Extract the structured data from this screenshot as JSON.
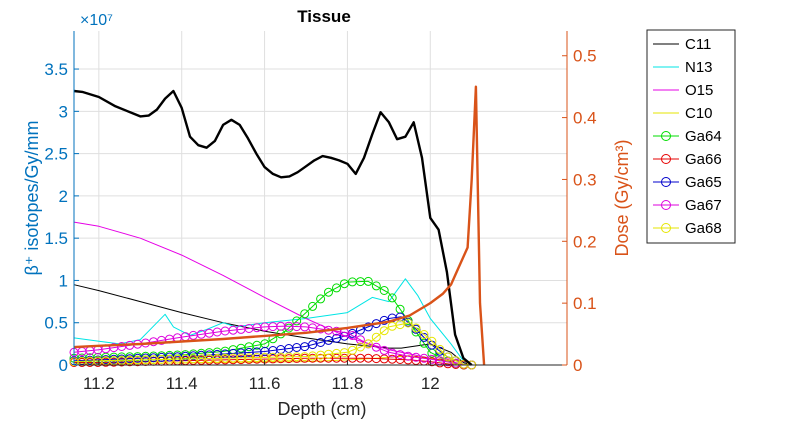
{
  "chart_data": {
    "type": "line",
    "title": "Tissue",
    "xlabel": "Depth (cm)",
    "ylabel_left": "β⁺ isotopes/Gy/mm",
    "ylabel_right": "Dose (Gy/cm³)",
    "left_exponent": "×10⁷",
    "xlim": [
      11.14,
      12.33
    ],
    "ylim_left": [
      0,
      3.95
    ],
    "ylim_right": [
      0,
      0.54
    ],
    "x_ticks": [
      11.2,
      11.4,
      11.6,
      11.8,
      12
    ],
    "x_tick_labels": [
      "11.2",
      "11.4",
      "11.6",
      "11.8",
      "12"
    ],
    "y_left_ticks": [
      0,
      0.5,
      1,
      1.5,
      2,
      2.5,
      3,
      3.5
    ],
    "y_left_tick_labels": [
      "0",
      "0.5",
      "1",
      "1.5",
      "2",
      "2.5",
      "3",
      "3.5"
    ],
    "y_right_ticks": [
      0,
      0.1,
      0.2,
      0.3,
      0.4,
      0.5
    ],
    "y_right_tick_labels": [
      "0",
      "0.1",
      "0.2",
      "0.3",
      "0.4",
      "0.5"
    ],
    "grid": true,
    "legend_position": "outside-top-right",
    "colors": {
      "left_axis": "#0072bd",
      "right_axis": "#d95319",
      "grid": "#dfdfdf"
    },
    "series": [
      {
        "name": "C11",
        "color": "#000000",
        "marker": "none",
        "axis": "left",
        "x": [
          11.14,
          11.2,
          11.3,
          11.4,
          11.5,
          11.6,
          11.7,
          11.8,
          11.9,
          11.93,
          12.0,
          12.05,
          12.08,
          12.1
        ],
        "y": [
          0.95,
          0.88,
          0.75,
          0.62,
          0.5,
          0.4,
          0.32,
          0.25,
          0.2,
          0.2,
          0.25,
          0.15,
          0.03,
          0.0
        ]
      },
      {
        "name": "N13",
        "color": "#00e5e5",
        "marker": "none",
        "axis": "left",
        "x": [
          11.14,
          11.2,
          11.25,
          11.3,
          11.34,
          11.36,
          11.38,
          11.42,
          11.46,
          11.5,
          11.53,
          11.6,
          11.7,
          11.8,
          11.86,
          11.9,
          11.94,
          11.97,
          12.0,
          12.05,
          12.08,
          12.1
        ],
        "y": [
          0.32,
          0.28,
          0.25,
          0.3,
          0.5,
          0.6,
          0.45,
          0.35,
          0.42,
          0.5,
          0.45,
          0.5,
          0.55,
          0.62,
          0.8,
          0.75,
          1.02,
          0.82,
          0.55,
          0.25,
          0.05,
          0.0
        ]
      },
      {
        "name": "O15",
        "color": "#e600e6",
        "marker": "none",
        "axis": "left",
        "x": [
          11.14,
          11.2,
          11.3,
          11.4,
          11.5,
          11.6,
          11.7,
          11.8,
          11.9,
          12.0,
          12.05,
          12.08,
          12.1
        ],
        "y": [
          1.69,
          1.64,
          1.5,
          1.3,
          1.06,
          0.8,
          0.55,
          0.33,
          0.18,
          0.08,
          0.04,
          0.01,
          0.0
        ]
      },
      {
        "name": "C10",
        "color": "#e6e600",
        "marker": "none",
        "axis": "left",
        "x": [
          11.14,
          11.3,
          11.5,
          11.7,
          11.8,
          11.9,
          11.95,
          12.0,
          12.05,
          12.08,
          12.1
        ],
        "y": [
          0.02,
          0.02,
          0.03,
          0.04,
          0.06,
          0.09,
          0.11,
          0.08,
          0.03,
          0.01,
          0.0
        ]
      },
      {
        "name": "Ga64",
        "color": "#00dd00",
        "marker": "o",
        "axis": "left",
        "x": [
          11.14,
          11.2,
          11.3,
          11.4,
          11.5,
          11.6,
          11.65,
          11.7,
          11.75,
          11.8,
          11.85,
          11.9,
          11.95,
          12.0,
          12.05,
          12.08,
          12.1
        ],
        "y": [
          0.08,
          0.09,
          0.1,
          0.12,
          0.16,
          0.25,
          0.4,
          0.62,
          0.85,
          0.98,
          0.99,
          0.85,
          0.5,
          0.15,
          0.03,
          0.0,
          0.0
        ]
      },
      {
        "name": "Ga66",
        "color": "#e60000",
        "marker": "o",
        "axis": "left",
        "x": [
          11.14,
          11.2,
          11.3,
          11.4,
          11.5,
          11.6,
          11.7,
          11.8,
          11.85,
          11.9,
          11.95,
          12.0,
          12.03,
          12.05,
          12.08,
          12.1
        ],
        "y": [
          0.03,
          0.03,
          0.04,
          0.05,
          0.06,
          0.07,
          0.08,
          0.08,
          0.08,
          0.07,
          0.06,
          0.04,
          0.02,
          0.01,
          0.0,
          0.0
        ]
      },
      {
        "name": "Ga65",
        "color": "#0000cc",
        "marker": "o",
        "axis": "left",
        "x": [
          11.14,
          11.2,
          11.3,
          11.4,
          11.5,
          11.6,
          11.7,
          11.8,
          11.85,
          11.9,
          11.93,
          11.96,
          12.0,
          12.04,
          12.08,
          12.1
        ],
        "y": [
          0.05,
          0.06,
          0.08,
          0.1,
          0.13,
          0.16,
          0.22,
          0.35,
          0.45,
          0.55,
          0.57,
          0.45,
          0.25,
          0.1,
          0.01,
          0.0
        ]
      },
      {
        "name": "Ga67",
        "color": "#dd00dd",
        "marker": "o",
        "axis": "left",
        "x": [
          11.14,
          11.2,
          11.3,
          11.4,
          11.5,
          11.6,
          11.65,
          11.7,
          11.8,
          11.85,
          11.9,
          11.95,
          12.0,
          12.05,
          12.08,
          12.1
        ],
        "y": [
          0.15,
          0.18,
          0.25,
          0.33,
          0.4,
          0.45,
          0.46,
          0.45,
          0.38,
          0.25,
          0.15,
          0.1,
          0.07,
          0.03,
          0.01,
          0.0
        ]
      },
      {
        "name": "Ga68",
        "color": "#e6e600",
        "marker": "o",
        "axis": "left",
        "x": [
          11.14,
          11.2,
          11.3,
          11.4,
          11.5,
          11.6,
          11.7,
          11.8,
          11.85,
          11.9,
          11.95,
          12.0,
          12.04,
          12.08,
          12.1
        ],
        "y": [
          0.04,
          0.05,
          0.06,
          0.07,
          0.08,
          0.09,
          0.1,
          0.15,
          0.25,
          0.45,
          0.5,
          0.3,
          0.1,
          0.01,
          0.0
        ]
      },
      {
        "name": "C11 (bold)",
        "color": "#000000",
        "marker": "none",
        "axis": "left",
        "bold": true,
        "x": [
          11.14,
          11.16,
          11.2,
          11.24,
          11.28,
          11.3,
          11.32,
          11.34,
          11.36,
          11.38,
          11.4,
          11.42,
          11.44,
          11.46,
          11.48,
          11.5,
          11.52,
          11.54,
          11.56,
          11.58,
          11.6,
          11.62,
          11.64,
          11.66,
          11.68,
          11.7,
          11.72,
          11.74,
          11.76,
          11.78,
          11.8,
          11.82,
          11.84,
          11.86,
          11.88,
          11.9,
          11.92,
          11.94,
          11.96,
          11.98,
          12.0,
          12.02,
          12.04,
          12.06,
          12.08,
          12.1
        ],
        "y": [
          3.24,
          3.23,
          3.17,
          3.06,
          2.98,
          2.94,
          2.95,
          3.02,
          3.15,
          3.24,
          3.04,
          2.7,
          2.6,
          2.57,
          2.65,
          2.84,
          2.9,
          2.84,
          2.68,
          2.5,
          2.34,
          2.26,
          2.22,
          2.23,
          2.28,
          2.35,
          2.42,
          2.47,
          2.45,
          2.42,
          2.38,
          2.26,
          2.45,
          2.73,
          2.99,
          2.87,
          2.67,
          2.7,
          2.87,
          2.45,
          1.74,
          1.6,
          1.1,
          0.36,
          0.08,
          0.0
        ]
      },
      {
        "name": "Dose",
        "color": "#d95319",
        "marker": "none",
        "axis": "right",
        "bold": true,
        "x": [
          11.14,
          11.2,
          11.3,
          11.4,
          11.5,
          11.6,
          11.7,
          11.8,
          11.9,
          11.95,
          12.0,
          12.03,
          12.05,
          12.07,
          12.09,
          12.1,
          12.11,
          12.12,
          12.13
        ],
        "y": [
          0.029,
          0.031,
          0.034,
          0.038,
          0.042,
          0.047,
          0.052,
          0.06,
          0.07,
          0.08,
          0.1,
          0.115,
          0.13,
          0.16,
          0.19,
          0.3,
          0.45,
          0.1,
          0.0
        ]
      }
    ],
    "legend": [
      "C11",
      "N13",
      "O15",
      "C10",
      "Ga64",
      "Ga66",
      "Ga65",
      "Ga67",
      "Ga68"
    ]
  }
}
